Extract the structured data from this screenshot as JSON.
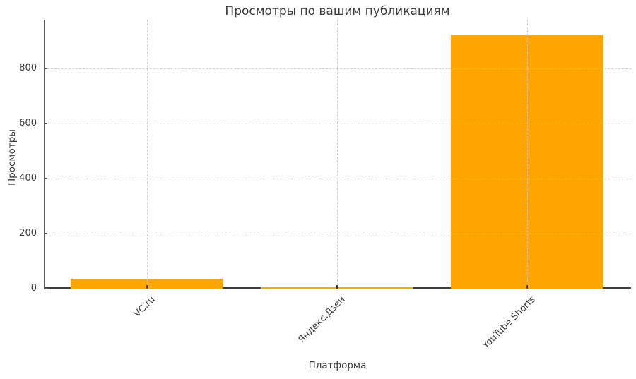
{
  "chart_data": {
    "type": "bar",
    "title": "Просмотры по вашим публикациям",
    "xlabel": "Платформа",
    "ylabel": "Просмотры",
    "categories": [
      "VC.ru",
      "Яндекс.Дзен",
      "YouTube Shorts"
    ],
    "values": [
      35,
      4,
      920
    ],
    "yticks": [
      0,
      200,
      400,
      600,
      800
    ],
    "ylim": [
      0,
      977
    ],
    "bar_color": "#FFA500",
    "grid": "on",
    "grid_style": "dashed",
    "grid_color": "#c8c8c8",
    "text_color": "#3a3a3a",
    "spine_color": "#555555",
    "legend": "none"
  }
}
